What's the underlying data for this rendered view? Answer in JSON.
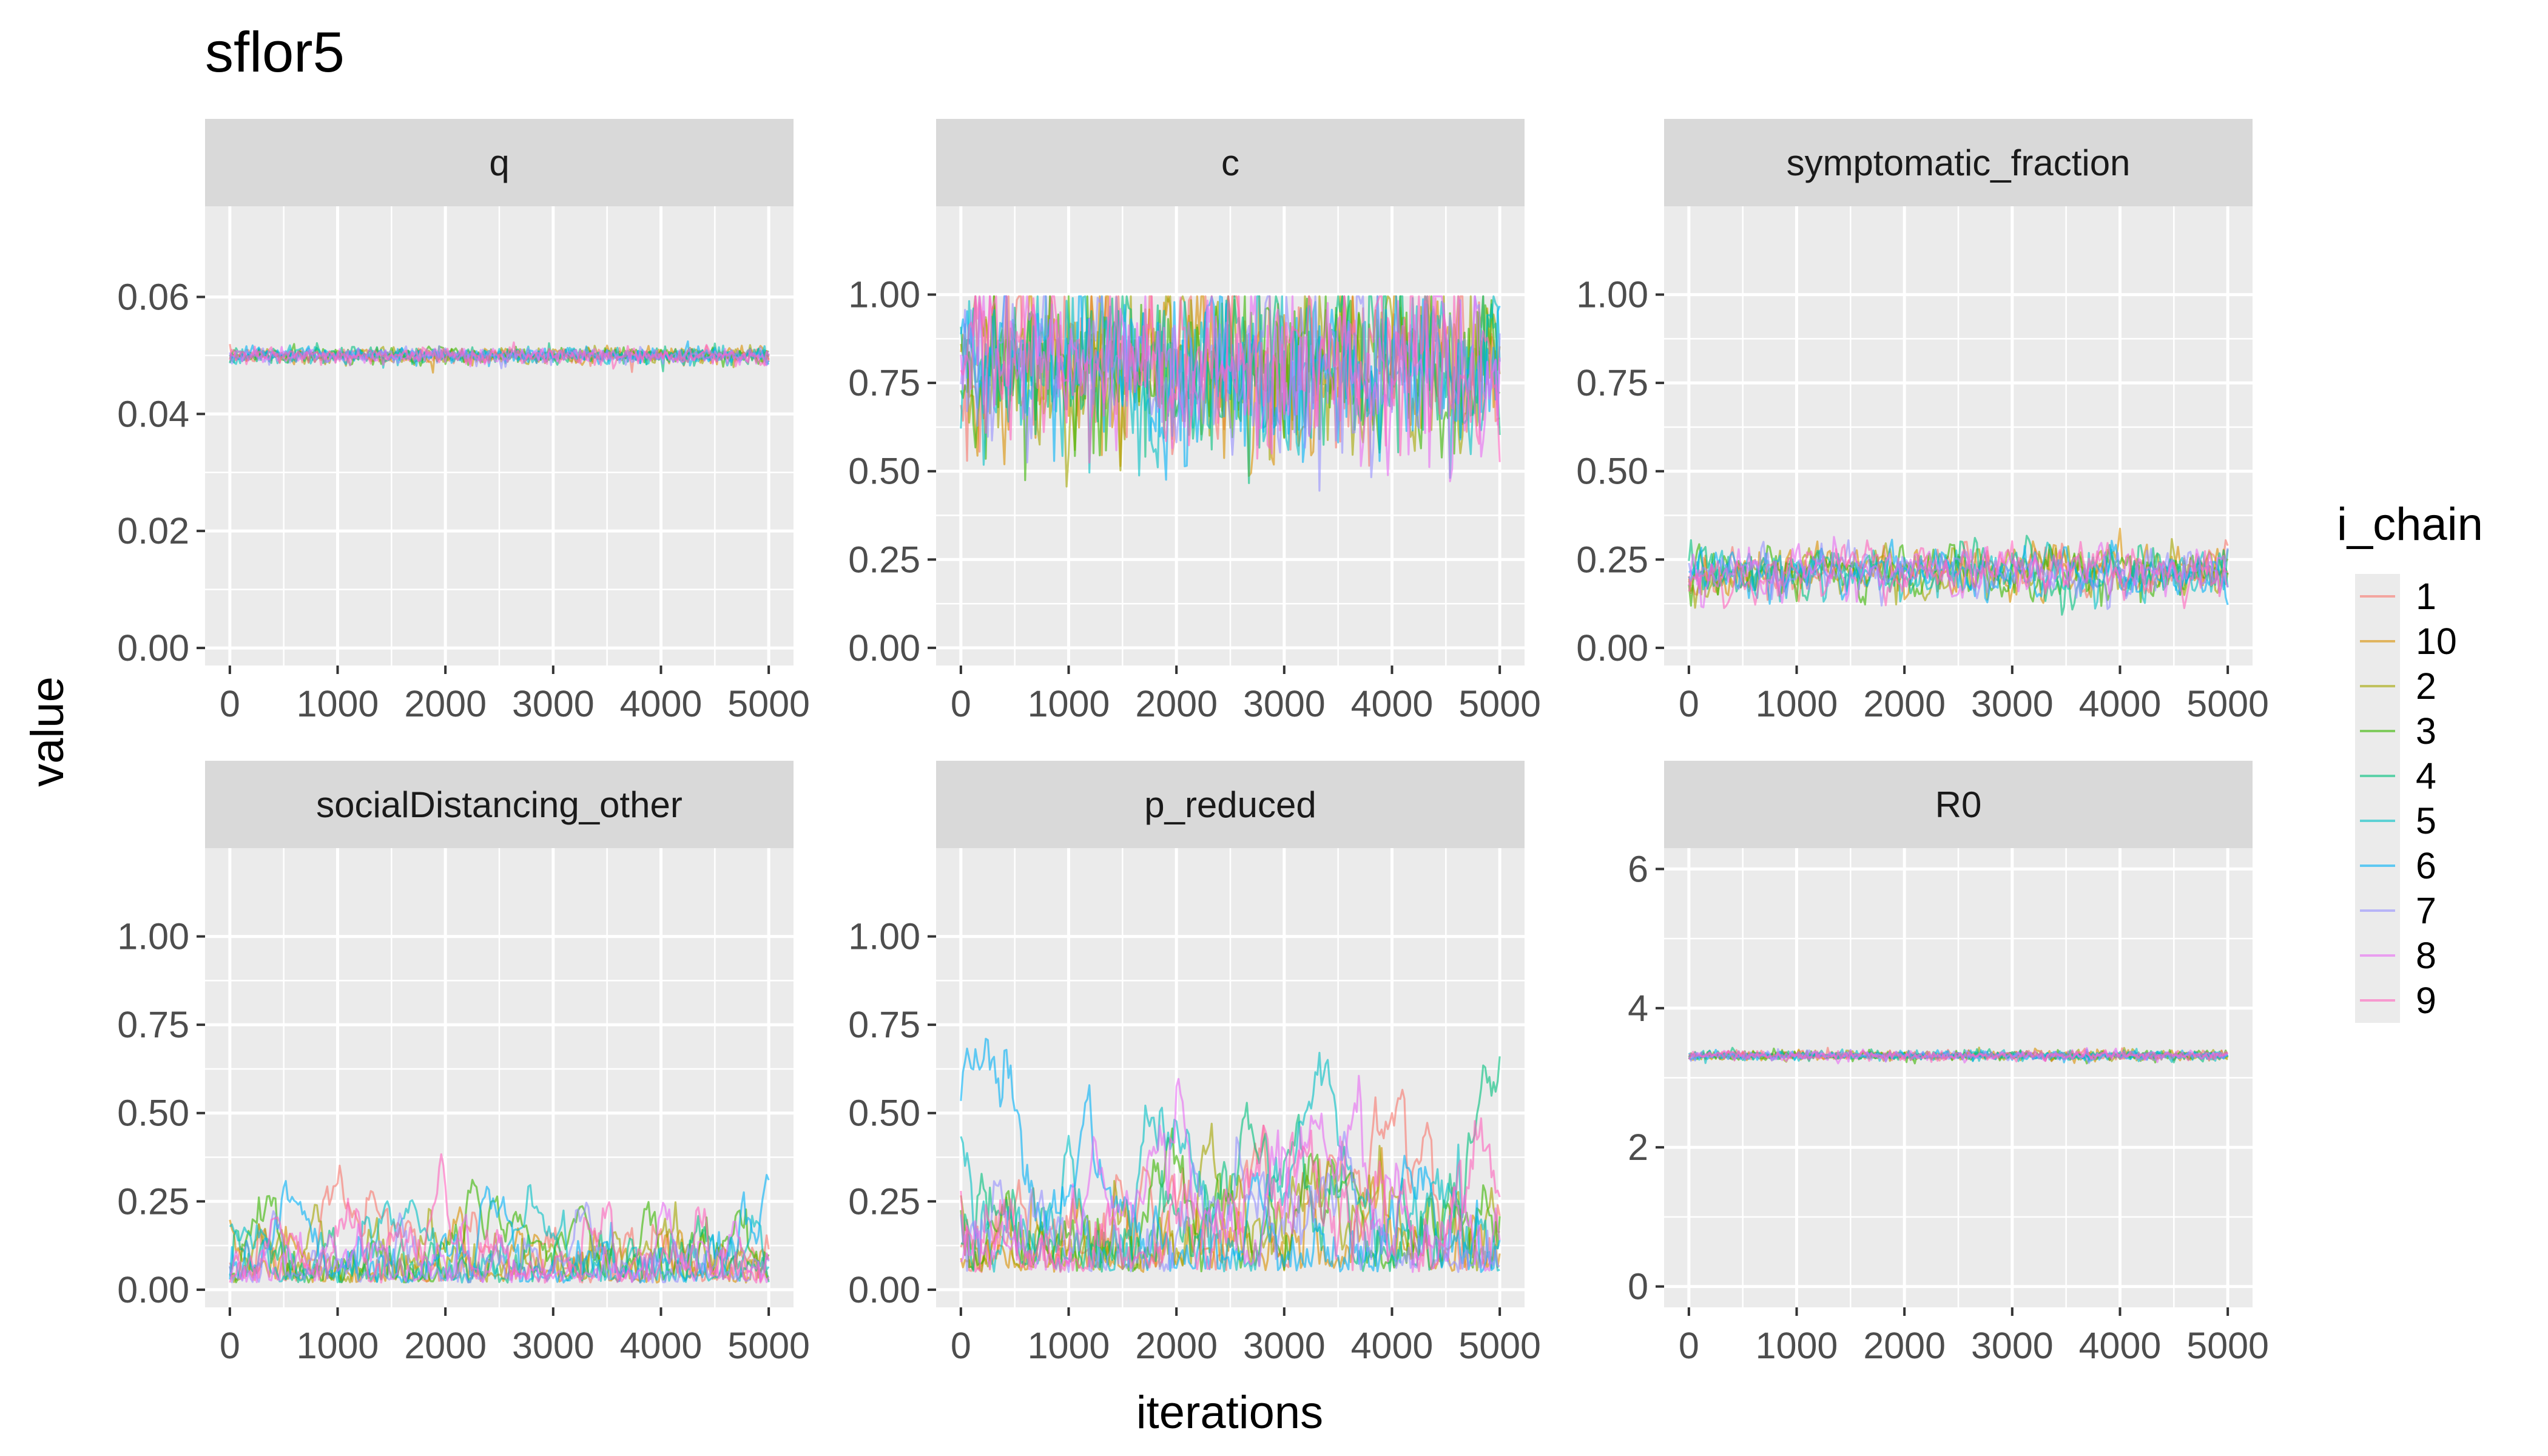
{
  "chart_data": {
    "type": "line",
    "title": "sflor5",
    "xlabel": "iterations",
    "ylabel": "value",
    "facet_layout": "2 rows x 3 columns",
    "x_range": [
      0,
      5000
    ],
    "x_ticks": [
      "0",
      "1000",
      "2000",
      "3000",
      "4000",
      "5000"
    ],
    "legend": {
      "title": "i_chain",
      "placement": "right",
      "entries": [
        "1",
        "10",
        "2",
        "3",
        "4",
        "5",
        "6",
        "7",
        "8",
        "9"
      ],
      "colors": [
        "#F8766D",
        "#D89000",
        "#A3A500",
        "#39B600",
        "#00BF7D",
        "#00BFC4",
        "#00B0F6",
        "#9590FF",
        "#E76BF3",
        "#FF62BC"
      ]
    },
    "panels": [
      {
        "name": "q",
        "ylim": [
          -0.003,
          0.0755
        ],
        "yticks": [
          0,
          0.02,
          0.04,
          0.06
        ],
        "ytick_labels": [
          "0.00",
          "0.02",
          "0.04",
          "0.06"
        ],
        "trace": {
          "kind": "noise",
          "mean": 0.05,
          "sd": 0.0007,
          "min": 0.0465,
          "max": 0.0535
        }
      },
      {
        "name": "c",
        "ylim": [
          -0.05,
          1.25
        ],
        "yticks": [
          0,
          0.25,
          0.5,
          0.75,
          1.0
        ],
        "ytick_labels": [
          "0.00",
          "0.25",
          "0.50",
          "0.75",
          "1.00"
        ],
        "trace": {
          "kind": "ar",
          "mean": 0.8,
          "sd": 0.12,
          "phi": 0.3,
          "min": 0.34,
          "max": 0.995
        }
      },
      {
        "name": "symptomatic_fraction",
        "ylim": [
          -0.05,
          1.25
        ],
        "yticks": [
          0,
          0.25,
          0.5,
          0.75,
          1.0
        ],
        "ytick_labels": [
          "0.00",
          "0.25",
          "0.50",
          "0.75",
          "1.00"
        ],
        "trace": {
          "kind": "ar",
          "mean": 0.215,
          "sd": 0.035,
          "phi": 0.6,
          "min": 0.09,
          "max": 0.36
        }
      },
      {
        "name": "socialDistancing_other",
        "ylim": [
          -0.05,
          1.25
        ],
        "yticks": [
          0,
          0.25,
          0.5,
          0.75,
          1.0
        ],
        "ytick_labels": [
          "0.00",
          "0.25",
          "0.50",
          "0.75",
          "1.00"
        ],
        "trace": {
          "kind": "abs",
          "mean": 0.02,
          "sd": 0.09,
          "phi": 0.93,
          "min": 0.0,
          "max": 0.48
        }
      },
      {
        "name": "p_reduced",
        "ylim": [
          -0.05,
          1.25
        ],
        "yticks": [
          0,
          0.25,
          0.5,
          0.75,
          1.0
        ],
        "ytick_labels": [
          "0.00",
          "0.25",
          "0.50",
          "0.75",
          "1.00"
        ],
        "trace": {
          "kind": "abs",
          "mean": 0.05,
          "sd": 0.22,
          "phi": 0.97,
          "min": 0.0,
          "max": 0.95
        }
      },
      {
        "name": "R0",
        "ylim": [
          -0.3,
          6.3
        ],
        "yticks": [
          0,
          2,
          4,
          6
        ],
        "ytick_labels": [
          "0",
          "2",
          "4",
          "6"
        ],
        "trace": {
          "kind": "noise",
          "mean": 3.32,
          "sd": 0.035,
          "min": 3.12,
          "max": 3.48
        }
      }
    ]
  }
}
